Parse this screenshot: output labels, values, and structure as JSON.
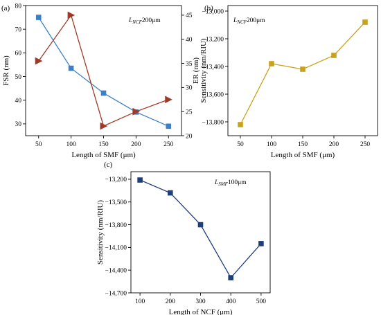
{
  "chart_data": [
    {
      "panel": "(a)",
      "type": "line",
      "annotation": "L_NCF=200μm",
      "xlabel": "Length of SMF (μm)",
      "ylabel": "FSR (nm)",
      "y2label": "ER (nm)",
      "x": [
        50,
        100,
        150,
        200,
        250
      ],
      "xticks": [
        "50",
        "100",
        "150",
        "200",
        "250"
      ],
      "ylim": [
        25,
        80
      ],
      "yticks": [
        "30",
        "40",
        "50",
        "60",
        "70",
        "80"
      ],
      "y2lim": [
        20,
        47
      ],
      "y2ticks": [
        "20",
        "25",
        "30",
        "35",
        "40",
        "45"
      ],
      "series": [
        {
          "name": "FSR",
          "axis": "left",
          "marker": "square",
          "color": "#3d7fc7",
          "values": [
            75,
            53.5,
            43,
            35,
            29
          ]
        },
        {
          "name": "ER",
          "axis": "right",
          "marker": "triangle",
          "color": "#9e3a26",
          "values": [
            35.5,
            45,
            22,
            25,
            27.5
          ]
        }
      ]
    },
    {
      "panel": "(b)",
      "type": "line",
      "annotation": "L_NCF=200μm",
      "xlabel": "Length of SMF (μm)",
      "ylabel": "Sensitivity (nm/RIU)",
      "x": [
        50,
        100,
        150,
        200,
        250
      ],
      "xticks": [
        "50",
        "100",
        "150",
        "200",
        "250"
      ],
      "ylim": [
        -13900,
        -12960
      ],
      "yticks": [
        "-13,800",
        "-13,600",
        "-13,400",
        "-13,200",
        "-13,000"
      ],
      "series": [
        {
          "name": "Sensitivity",
          "marker": "square",
          "color": "#c9a21c",
          "values": [
            -13820,
            -13380,
            -13420,
            -13320,
            -13080
          ]
        }
      ]
    },
    {
      "panel": "(c)",
      "type": "line",
      "annotation": "L_SMF=100μm",
      "xlabel": "Length of NCF (μm)",
      "ylabel": "Sensitivity (nm/RIU)",
      "x": [
        100,
        200,
        300,
        400,
        500
      ],
      "xticks": [
        "100",
        "200",
        "300",
        "400",
        "500"
      ],
      "ylim": [
        -14700,
        -13100
      ],
      "yticks": [
        "-14,700",
        "-14,400",
        "-14,100",
        "-13,800",
        "-13,500",
        "-13,200"
      ],
      "series": [
        {
          "name": "Sensitivity",
          "marker": "square",
          "color": "#1f3f7a",
          "values": [
            -13210,
            -13380,
            -13800,
            -14500,
            -14050
          ]
        }
      ]
    }
  ]
}
